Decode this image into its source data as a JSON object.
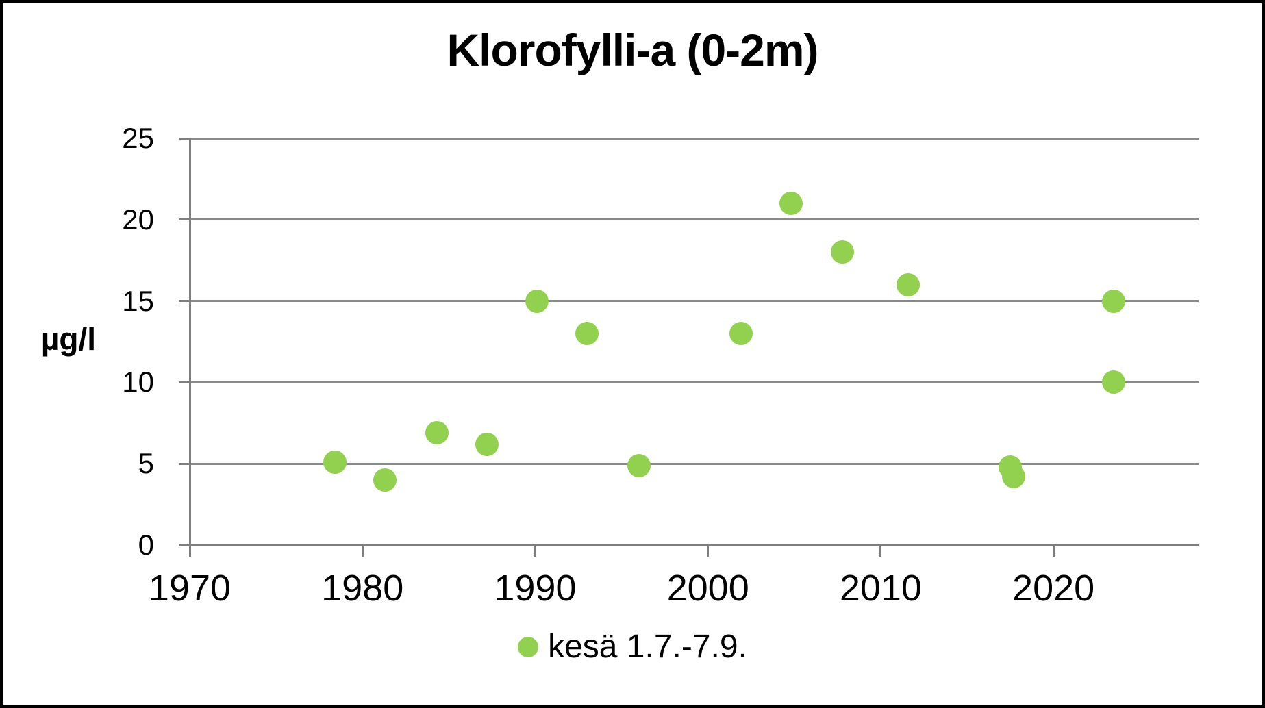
{
  "chart_data": {
    "type": "scatter",
    "title": "Klorofylli-a (0-2m)",
    "ylabel": "µg/l",
    "xlabel": "",
    "xlim": [
      1970,
      2028.4
    ],
    "ylim": [
      0,
      25
    ],
    "x_ticks": [
      1970,
      1980,
      1990,
      2000,
      2010,
      2020
    ],
    "y_ticks": [
      0,
      5,
      10,
      15,
      20,
      25
    ],
    "grid": "horizontal",
    "legend_position": "bottom-center",
    "series": [
      {
        "name": "kesä 1.7.-7.9.",
        "marker": "circle",
        "color": "#92D050",
        "points": [
          {
            "x": 1978.4,
            "y": 5.1
          },
          {
            "x": 1981.3,
            "y": 4.0
          },
          {
            "x": 1984.3,
            "y": 6.9
          },
          {
            "x": 1987.2,
            "y": 6.2
          },
          {
            "x": 1990.1,
            "y": 15.0
          },
          {
            "x": 1993.0,
            "y": 13.0
          },
          {
            "x": 1996.0,
            "y": 4.9
          },
          {
            "x": 2001.9,
            "y": 13.0
          },
          {
            "x": 2004.8,
            "y": 21.0
          },
          {
            "x": 2007.8,
            "y": 18.0
          },
          {
            "x": 2011.6,
            "y": 16.0
          },
          {
            "x": 2017.5,
            "y": 4.8
          },
          {
            "x": 2017.7,
            "y": 4.2
          },
          {
            "x": 2023.5,
            "y": 15.0
          },
          {
            "x": 2023.5,
            "y": 10.0
          }
        ]
      }
    ],
    "colors": {
      "marker": "#92D050",
      "gridline": "#8a8a8a",
      "axis": "#7f7f7f",
      "text": "#000000",
      "frame_border": "#000000",
      "background": "#ffffff"
    }
  }
}
